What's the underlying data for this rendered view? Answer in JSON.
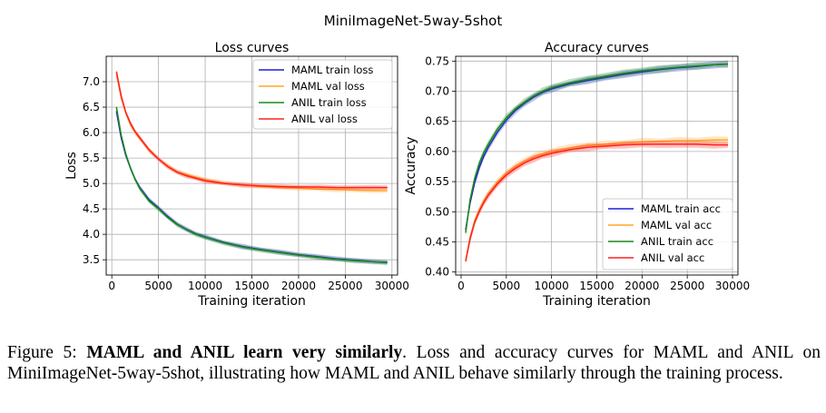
{
  "suptitle": "MiniImageNet-5way-5shot",
  "caption": {
    "label": "Figure 5: ",
    "bold": "MAML and ANIL learn very similarly",
    "rest": ". Loss and accuracy curves for MAML and ANIL on MiniImageNet-5way-5shot, illustrating how MAML and ANIL behave similarly through the training process."
  },
  "colors": {
    "maml_train": "#1f1fd6",
    "maml_val": "#ffa726",
    "anil_train": "#1a8a1a",
    "anil_val": "#ff2020"
  },
  "chart_data": [
    {
      "type": "line",
      "title": "Loss curves",
      "xlabel": "Training iteration",
      "ylabel": "Loss",
      "xlim": [
        -600,
        30600
      ],
      "ylim": [
        3.2,
        7.5
      ],
      "xticks": [
        0,
        5000,
        10000,
        15000,
        20000,
        25000,
        30000
      ],
      "yticks": [
        3.5,
        4.0,
        4.5,
        5.0,
        5.5,
        6.0,
        6.5,
        7.0
      ],
      "ytick_labels": [
        "3.5",
        "4.0",
        "4.5",
        "5.0",
        "5.5",
        "6.0",
        "6.5",
        "7.0"
      ],
      "grid": true,
      "legend_position": "top-right",
      "x": [
        500,
        1000,
        1500,
        2000,
        2500,
        3000,
        4000,
        5000,
        6000,
        7000,
        8000,
        9000,
        10000,
        12000,
        14000,
        16000,
        18000,
        20000,
        22000,
        24000,
        26000,
        28000,
        29500
      ],
      "series": [
        {
          "name": "MAML train loss",
          "color_key": "maml_train",
          "values": [
            6.42,
            5.9,
            5.55,
            5.3,
            5.08,
            4.92,
            4.68,
            4.52,
            4.35,
            4.2,
            4.1,
            4.01,
            3.95,
            3.84,
            3.76,
            3.7,
            3.65,
            3.6,
            3.56,
            3.52,
            3.49,
            3.46,
            3.45
          ]
        },
        {
          "name": "MAML val loss",
          "color_key": "maml_val",
          "values": [
            7.15,
            6.68,
            6.38,
            6.15,
            6.0,
            5.88,
            5.65,
            5.48,
            5.34,
            5.23,
            5.17,
            5.12,
            5.07,
            5.01,
            4.97,
            4.94,
            4.92,
            4.91,
            4.89,
            4.88,
            4.87,
            4.86,
            4.86
          ]
        },
        {
          "name": "ANIL train loss",
          "color_key": "anil_train",
          "values": [
            6.5,
            5.95,
            5.58,
            5.3,
            5.08,
            4.9,
            4.65,
            4.5,
            4.33,
            4.19,
            4.09,
            4.0,
            3.94,
            3.83,
            3.75,
            3.69,
            3.64,
            3.59,
            3.55,
            3.51,
            3.48,
            3.46,
            3.44
          ]
        },
        {
          "name": "ANIL val loss",
          "color_key": "anil_val",
          "values": [
            7.2,
            6.72,
            6.4,
            6.18,
            6.02,
            5.9,
            5.66,
            5.48,
            5.33,
            5.22,
            5.15,
            5.1,
            5.05,
            5.0,
            4.97,
            4.95,
            4.94,
            4.93,
            4.93,
            4.92,
            4.92,
            4.92,
            4.92
          ]
        }
      ]
    },
    {
      "type": "line",
      "title": "Accuracy curves",
      "xlabel": "Training iteration",
      "ylabel": "Accuracy",
      "xlim": [
        -600,
        30600
      ],
      "ylim": [
        0.395,
        0.758
      ],
      "xticks": [
        0,
        5000,
        10000,
        15000,
        20000,
        25000,
        30000
      ],
      "yticks": [
        0.4,
        0.45,
        0.5,
        0.55,
        0.6,
        0.65,
        0.7,
        0.75
      ],
      "ytick_labels": [
        "0.40",
        "0.45",
        "0.50",
        "0.55",
        "0.60",
        "0.65",
        "0.70",
        "0.75"
      ],
      "grid": true,
      "legend_position": "bottom-right",
      "x": [
        500,
        1000,
        1500,
        2000,
        2500,
        3000,
        4000,
        5000,
        6000,
        7000,
        8000,
        9000,
        10000,
        12000,
        14000,
        16000,
        18000,
        20000,
        22000,
        24000,
        26000,
        28000,
        29500
      ],
      "series": [
        {
          "name": "MAML train acc",
          "color_key": "maml_train",
          "values": [
            0.47,
            0.515,
            0.548,
            0.573,
            0.592,
            0.607,
            0.632,
            0.652,
            0.668,
            0.68,
            0.69,
            0.698,
            0.704,
            0.712,
            0.718,
            0.723,
            0.728,
            0.732,
            0.736,
            0.739,
            0.741,
            0.744,
            0.745
          ]
        },
        {
          "name": "MAML val acc",
          "color_key": "maml_val",
          "values": [
            0.418,
            0.458,
            0.485,
            0.503,
            0.518,
            0.53,
            0.549,
            0.564,
            0.575,
            0.584,
            0.591,
            0.596,
            0.6,
            0.606,
            0.61,
            0.612,
            0.614,
            0.616,
            0.617,
            0.618,
            0.618,
            0.619,
            0.619
          ]
        },
        {
          "name": "ANIL train acc",
          "color_key": "anil_train",
          "values": [
            0.465,
            0.52,
            0.555,
            0.58,
            0.598,
            0.612,
            0.637,
            0.656,
            0.671,
            0.682,
            0.692,
            0.7,
            0.706,
            0.714,
            0.72,
            0.725,
            0.73,
            0.734,
            0.737,
            0.74,
            0.742,
            0.744,
            0.745
          ]
        },
        {
          "name": "ANIL val acc",
          "color_key": "anil_val",
          "values": [
            0.418,
            0.455,
            0.482,
            0.5,
            0.515,
            0.527,
            0.546,
            0.561,
            0.572,
            0.581,
            0.588,
            0.593,
            0.597,
            0.603,
            0.607,
            0.609,
            0.611,
            0.612,
            0.612,
            0.612,
            0.612,
            0.611,
            0.611
          ]
        }
      ]
    }
  ]
}
